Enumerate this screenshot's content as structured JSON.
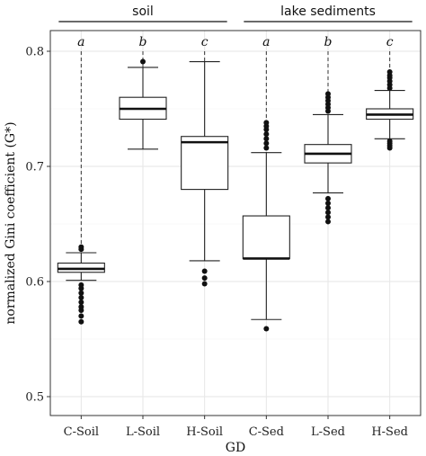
{
  "chart_data": {
    "type": "boxplot",
    "xlabel": "GD",
    "ylabel": "normalized Gini coefficient (G*)",
    "ylim": [
      0.5,
      0.8
    ],
    "yticks": [
      0.5,
      0.6,
      0.7,
      0.8
    ],
    "ytick_labels": [
      "0.5",
      "0.6",
      "0.7",
      "0.8"
    ],
    "grid": true,
    "groups": [
      {
        "label": "soil",
        "categories": [
          "C-Soil",
          "L-Soil",
          "H-Soil"
        ]
      },
      {
        "label": "lake sediments",
        "categories": [
          "C-Sed",
          "L-Sed",
          "H-Sed"
        ]
      }
    ],
    "boxes": [
      {
        "category": "C-Soil",
        "letter": "a",
        "whisker_low": 0.601,
        "q1": 0.608,
        "median": 0.611,
        "q3": 0.616,
        "whisker_high": 0.625,
        "extreme_max": 0.8,
        "outliers": [
          0.565,
          0.57,
          0.575,
          0.578,
          0.582,
          0.586,
          0.59,
          0.594,
          0.597,
          0.628,
          0.63
        ]
      },
      {
        "category": "L-Soil",
        "letter": "b",
        "whisker_low": 0.715,
        "q1": 0.741,
        "median": 0.75,
        "q3": 0.76,
        "whisker_high": 0.786,
        "extreme_max": 0.8,
        "outliers": [
          0.791
        ]
      },
      {
        "category": "H-Soil",
        "letter": "c",
        "whisker_low": 0.618,
        "q1": 0.68,
        "median": 0.721,
        "q3": 0.726,
        "whisker_high": 0.791,
        "extreme_max": 0.8,
        "outliers": [
          0.598,
          0.603,
          0.609
        ]
      },
      {
        "category": "C-Sed",
        "letter": "a",
        "whisker_low": 0.567,
        "q1": 0.62,
        "median": 0.62,
        "q3": 0.657,
        "whisker_high": 0.712,
        "extreme_max": 0.8,
        "outliers": [
          0.559,
          0.716,
          0.72,
          0.724,
          0.728,
          0.732,
          0.735,
          0.738
        ]
      },
      {
        "category": "L-Sed",
        "letter": "b",
        "whisker_low": 0.677,
        "q1": 0.703,
        "median": 0.711,
        "q3": 0.719,
        "whisker_high": 0.745,
        "extreme_max": 0.8,
        "outliers": [
          0.652,
          0.656,
          0.66,
          0.664,
          0.668,
          0.672,
          0.748,
          0.751,
          0.754,
          0.757,
          0.76,
          0.763
        ]
      },
      {
        "category": "H-Sed",
        "letter": "c",
        "whisker_low": 0.724,
        "q1": 0.741,
        "median": 0.745,
        "q3": 0.75,
        "whisker_high": 0.766,
        "extreme_max": 0.8,
        "outliers": [
          0.716,
          0.718,
          0.72,
          0.722,
          0.768,
          0.771,
          0.774,
          0.777,
          0.779,
          0.782
        ]
      }
    ]
  }
}
